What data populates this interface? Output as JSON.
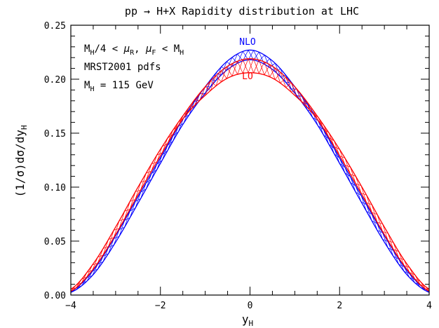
{
  "chart_data": {
    "type": "line",
    "title": "pp → H+X Rapidity distribution at LHC",
    "xlabel_main": "y",
    "xlabel_sub": "H",
    "ylabel_main": "(1/σ)dσ/dy",
    "ylabel_sub": "H",
    "xlim": [
      -4,
      4
    ],
    "ylim": [
      0,
      0.25
    ],
    "x_ticks": [
      -4,
      -2,
      0,
      2,
      4
    ],
    "x_tick_labels": [
      "−4",
      "−2",
      "0",
      "2",
      "4"
    ],
    "y_ticks": [
      0.0,
      0.05,
      0.1,
      0.15,
      0.2,
      0.25
    ],
    "y_tick_labels": [
      "0.00",
      "0.05",
      "0.10",
      "0.15",
      "0.20",
      "0.25"
    ],
    "grid": false,
    "annotations": {
      "line1": {
        "a": "M",
        "a_sub": "H",
        "b": "/4 < ",
        "c": "μ",
        "c_sub": "R",
        "d": ", ",
        "e": "μ",
        "e_sub": "F",
        "f": " < M",
        "f_sub": "H"
      },
      "line2": "MRST2001 pdfs",
      "line3": {
        "a": "M",
        "a_sub": "H",
        "b": " = 115 GeV"
      }
    },
    "series": [
      {
        "name": "NLO",
        "color": "#0000ff",
        "band": true,
        "x": [
          -4.0,
          -3.5,
          -3.0,
          -2.5,
          -2.0,
          -1.5,
          -1.0,
          -0.5,
          0.0,
          0.5,
          1.0,
          1.5,
          2.0,
          2.5,
          3.0,
          3.5,
          4.0
        ],
        "upper": [
          0.0035,
          0.023,
          0.055,
          0.091,
          0.127,
          0.163,
          0.193,
          0.217,
          0.227,
          0.217,
          0.193,
          0.163,
          0.127,
          0.091,
          0.055,
          0.023,
          0.0035
        ],
        "lower": [
          0.0025,
          0.019,
          0.049,
          0.085,
          0.122,
          0.158,
          0.187,
          0.209,
          0.218,
          0.209,
          0.187,
          0.158,
          0.122,
          0.085,
          0.049,
          0.019,
          0.0025
        ]
      },
      {
        "name": "LO",
        "color": "#ff0000",
        "band": true,
        "x": [
          -4.0,
          -3.5,
          -3.0,
          -2.5,
          -2.0,
          -1.5,
          -1.0,
          -0.5,
          0.0,
          0.5,
          1.0,
          1.5,
          2.0,
          2.5,
          3.0,
          3.5,
          4.0
        ],
        "upper": [
          0.0055,
          0.029,
          0.063,
          0.1,
          0.135,
          0.166,
          0.193,
          0.212,
          0.219,
          0.212,
          0.193,
          0.166,
          0.135,
          0.1,
          0.063,
          0.029,
          0.0055
        ],
        "lower": [
          0.0035,
          0.024,
          0.056,
          0.093,
          0.129,
          0.163,
          0.185,
          0.201,
          0.206,
          0.201,
          0.185,
          0.163,
          0.129,
          0.093,
          0.056,
          0.024,
          0.0035
        ]
      }
    ]
  }
}
